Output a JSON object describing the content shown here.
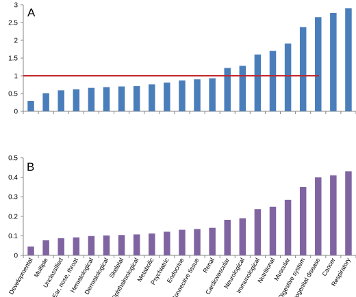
{
  "chart_data": [
    {
      "type": "bar",
      "panel_label": "A",
      "title": "",
      "xlabel": "",
      "ylabel": "",
      "ylim": [
        0,
        3
      ],
      "yticks": [
        "0",
        "0.5",
        "1",
        "1.5",
        "2",
        "2.5",
        "3"
      ],
      "ytick_values": [
        0,
        0.5,
        1,
        1.5,
        2,
        2.5,
        3
      ],
      "values": [
        0.29,
        0.51,
        0.59,
        0.62,
        0.66,
        0.68,
        0.7,
        0.71,
        0.76,
        0.81,
        0.87,
        0.9,
        0.93,
        1.22,
        1.28,
        1.6,
        1.7,
        1.91,
        2.37,
        2.65,
        2.77,
        2.9
      ],
      "reference_line": {
        "y": 1,
        "color": "#c0252a"
      },
      "bar_color": "#4a7ebb",
      "grid": false
    },
    {
      "type": "bar",
      "panel_label": "B",
      "title": "",
      "xlabel": "",
      "ylabel": "",
      "ylim": [
        0,
        0.5
      ],
      "yticks": [
        "0",
        "0.1",
        "0.2",
        "0.3",
        "0.4",
        "0.5"
      ],
      "ytick_values": [
        0,
        0.1,
        0.2,
        0.3,
        0.4,
        0.5
      ],
      "categories": [
        "Developmental",
        "Multiple",
        "Unclassified",
        "Ear, nose, throat",
        "Hematological",
        "Dermatological",
        "Skeletal",
        "Ophthalmological",
        "Metabolic",
        "Psychiatric",
        "Endocrine",
        "Connective tissue",
        "Renal",
        "Cardiovascular",
        "Neurological",
        "Immunological",
        "Nutritional",
        "Muscular",
        "Digestive system",
        "Urogenital disease",
        "Cancer",
        "Respiratory"
      ],
      "values": [
        0.045,
        0.077,
        0.088,
        0.092,
        0.099,
        0.102,
        0.104,
        0.107,
        0.112,
        0.121,
        0.131,
        0.135,
        0.141,
        0.182,
        0.19,
        0.237,
        0.249,
        0.284,
        0.35,
        0.4,
        0.41,
        0.43
      ],
      "bar_color": "#8064a2",
      "grid": false
    }
  ]
}
